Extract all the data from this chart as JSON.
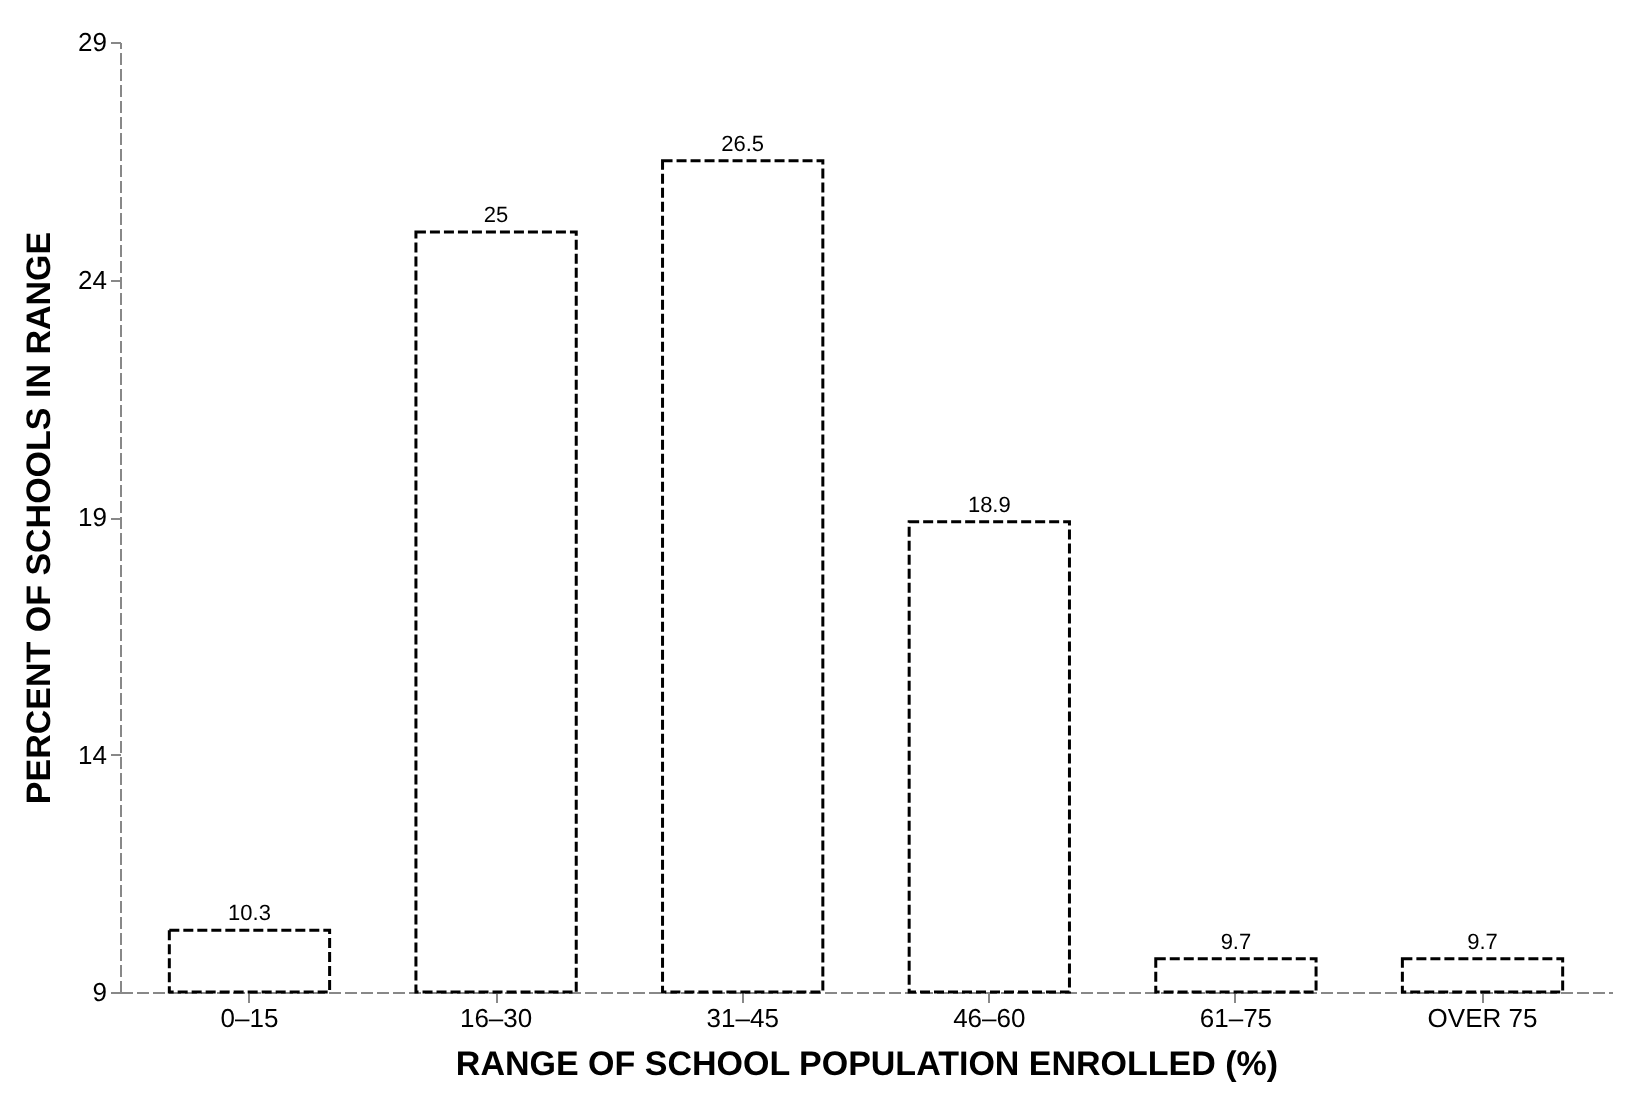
{
  "chart_data": {
    "type": "bar",
    "xlabel": "RANGE OF SCHOOL POPULATION ENROLLED (%)",
    "ylabel": "PERCENT OF SCHOOLS IN RANGE",
    "categories": [
      "0–15",
      "16–30",
      "31–45",
      "46–60",
      "61–75",
      "OVER 75"
    ],
    "values": [
      10.3,
      25,
      26.5,
      18.9,
      9.7,
      9.7
    ],
    "color": "#ffffff",
    "ylim": [
      9,
      29
    ],
    "yticks": [
      9,
      14,
      19,
      24,
      29
    ],
    "data_labels": true,
    "grid": false
  }
}
